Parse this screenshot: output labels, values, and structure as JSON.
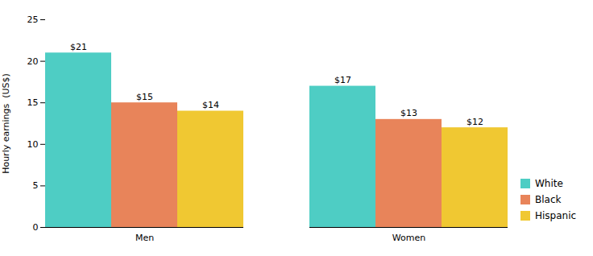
{
  "chart_data": {
    "type": "bar",
    "categories": [
      "Men",
      "Women"
    ],
    "series": [
      {
        "name": "White",
        "color": "#4ecdc4",
        "values": [
          21,
          17
        ],
        "value_labels": [
          "$21",
          "$17"
        ]
      },
      {
        "name": "Black",
        "color": "#e8845a",
        "values": [
          15,
          13
        ],
        "value_labels": [
          "$15",
          "$13"
        ]
      },
      {
        "name": "Hispanic",
        "color": "#f0c832",
        "values": [
          14,
          12
        ],
        "value_labels": [
          "$14",
          "$12"
        ]
      }
    ],
    "ylabel": "Hourly earnings  (US$)",
    "ylim": [
      0,
      25
    ],
    "yticks": [
      0,
      5,
      10,
      15,
      20,
      25
    ],
    "grid": false,
    "legend": "lower right",
    "data_labels": true
  }
}
